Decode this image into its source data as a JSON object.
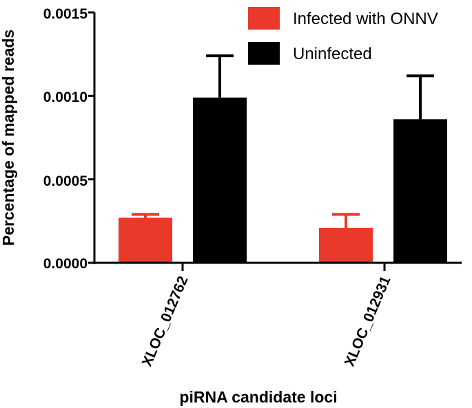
{
  "chart_data": {
    "type": "bar",
    "title": "",
    "xlabel": "piRNA candidate loci",
    "ylabel": "Percentage of mapped reads",
    "ylim": [
      0,
      0.0015
    ],
    "yticks": [
      0.0,
      0.0005,
      0.001,
      0.0015
    ],
    "ytick_labels": [
      "0.0000",
      "0.0005",
      "0.0010",
      "0.0015"
    ],
    "categories": [
      "XLOC_012762",
      "XLOC_012931"
    ],
    "series": [
      {
        "name": "Infected with ONNV",
        "color": "#e8392a",
        "values": [
          0.00027,
          0.00021
        ],
        "errors": [
          2e-05,
          8e-05
        ]
      },
      {
        "name": "Uninfected",
        "color": "#000000",
        "values": [
          0.00099,
          0.00086
        ],
        "errors": [
          0.00025,
          0.00026
        ]
      }
    ],
    "legend_position": "top-right"
  }
}
